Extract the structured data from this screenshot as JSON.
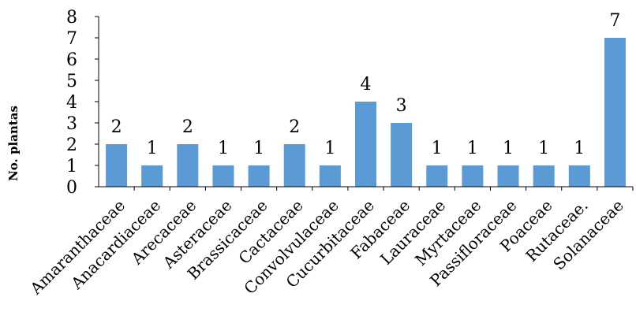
{
  "chart_data": {
    "type": "bar",
    "title": "",
    "xlabel": "",
    "ylabel": "No. plantas",
    "categories": [
      "Amaranthaceae",
      "Anacardiaceae",
      "Arecaceae",
      "Asteraceae",
      "Brassicaceae",
      "Cactaceae",
      "Convolvulaceae",
      "Cucurbitaceae",
      "Fabaceae",
      "Lauraceae",
      "Myrtaceae",
      "Passifloraceae",
      "Poaceae",
      "Rutaceae.",
      "Solanaceae"
    ],
    "values": [
      2,
      1,
      2,
      1,
      1,
      2,
      1,
      4,
      3,
      1,
      1,
      1,
      1,
      1,
      7
    ],
    "y_ticks": [
      "0",
      "1",
      "2",
      "3",
      "4",
      "5",
      "6",
      "7",
      "8"
    ],
    "ylim": [
      0,
      8
    ],
    "grid": false,
    "legend": "none",
    "colors": {
      "bar": "#5b9bd5",
      "axis": "#000000"
    }
  }
}
